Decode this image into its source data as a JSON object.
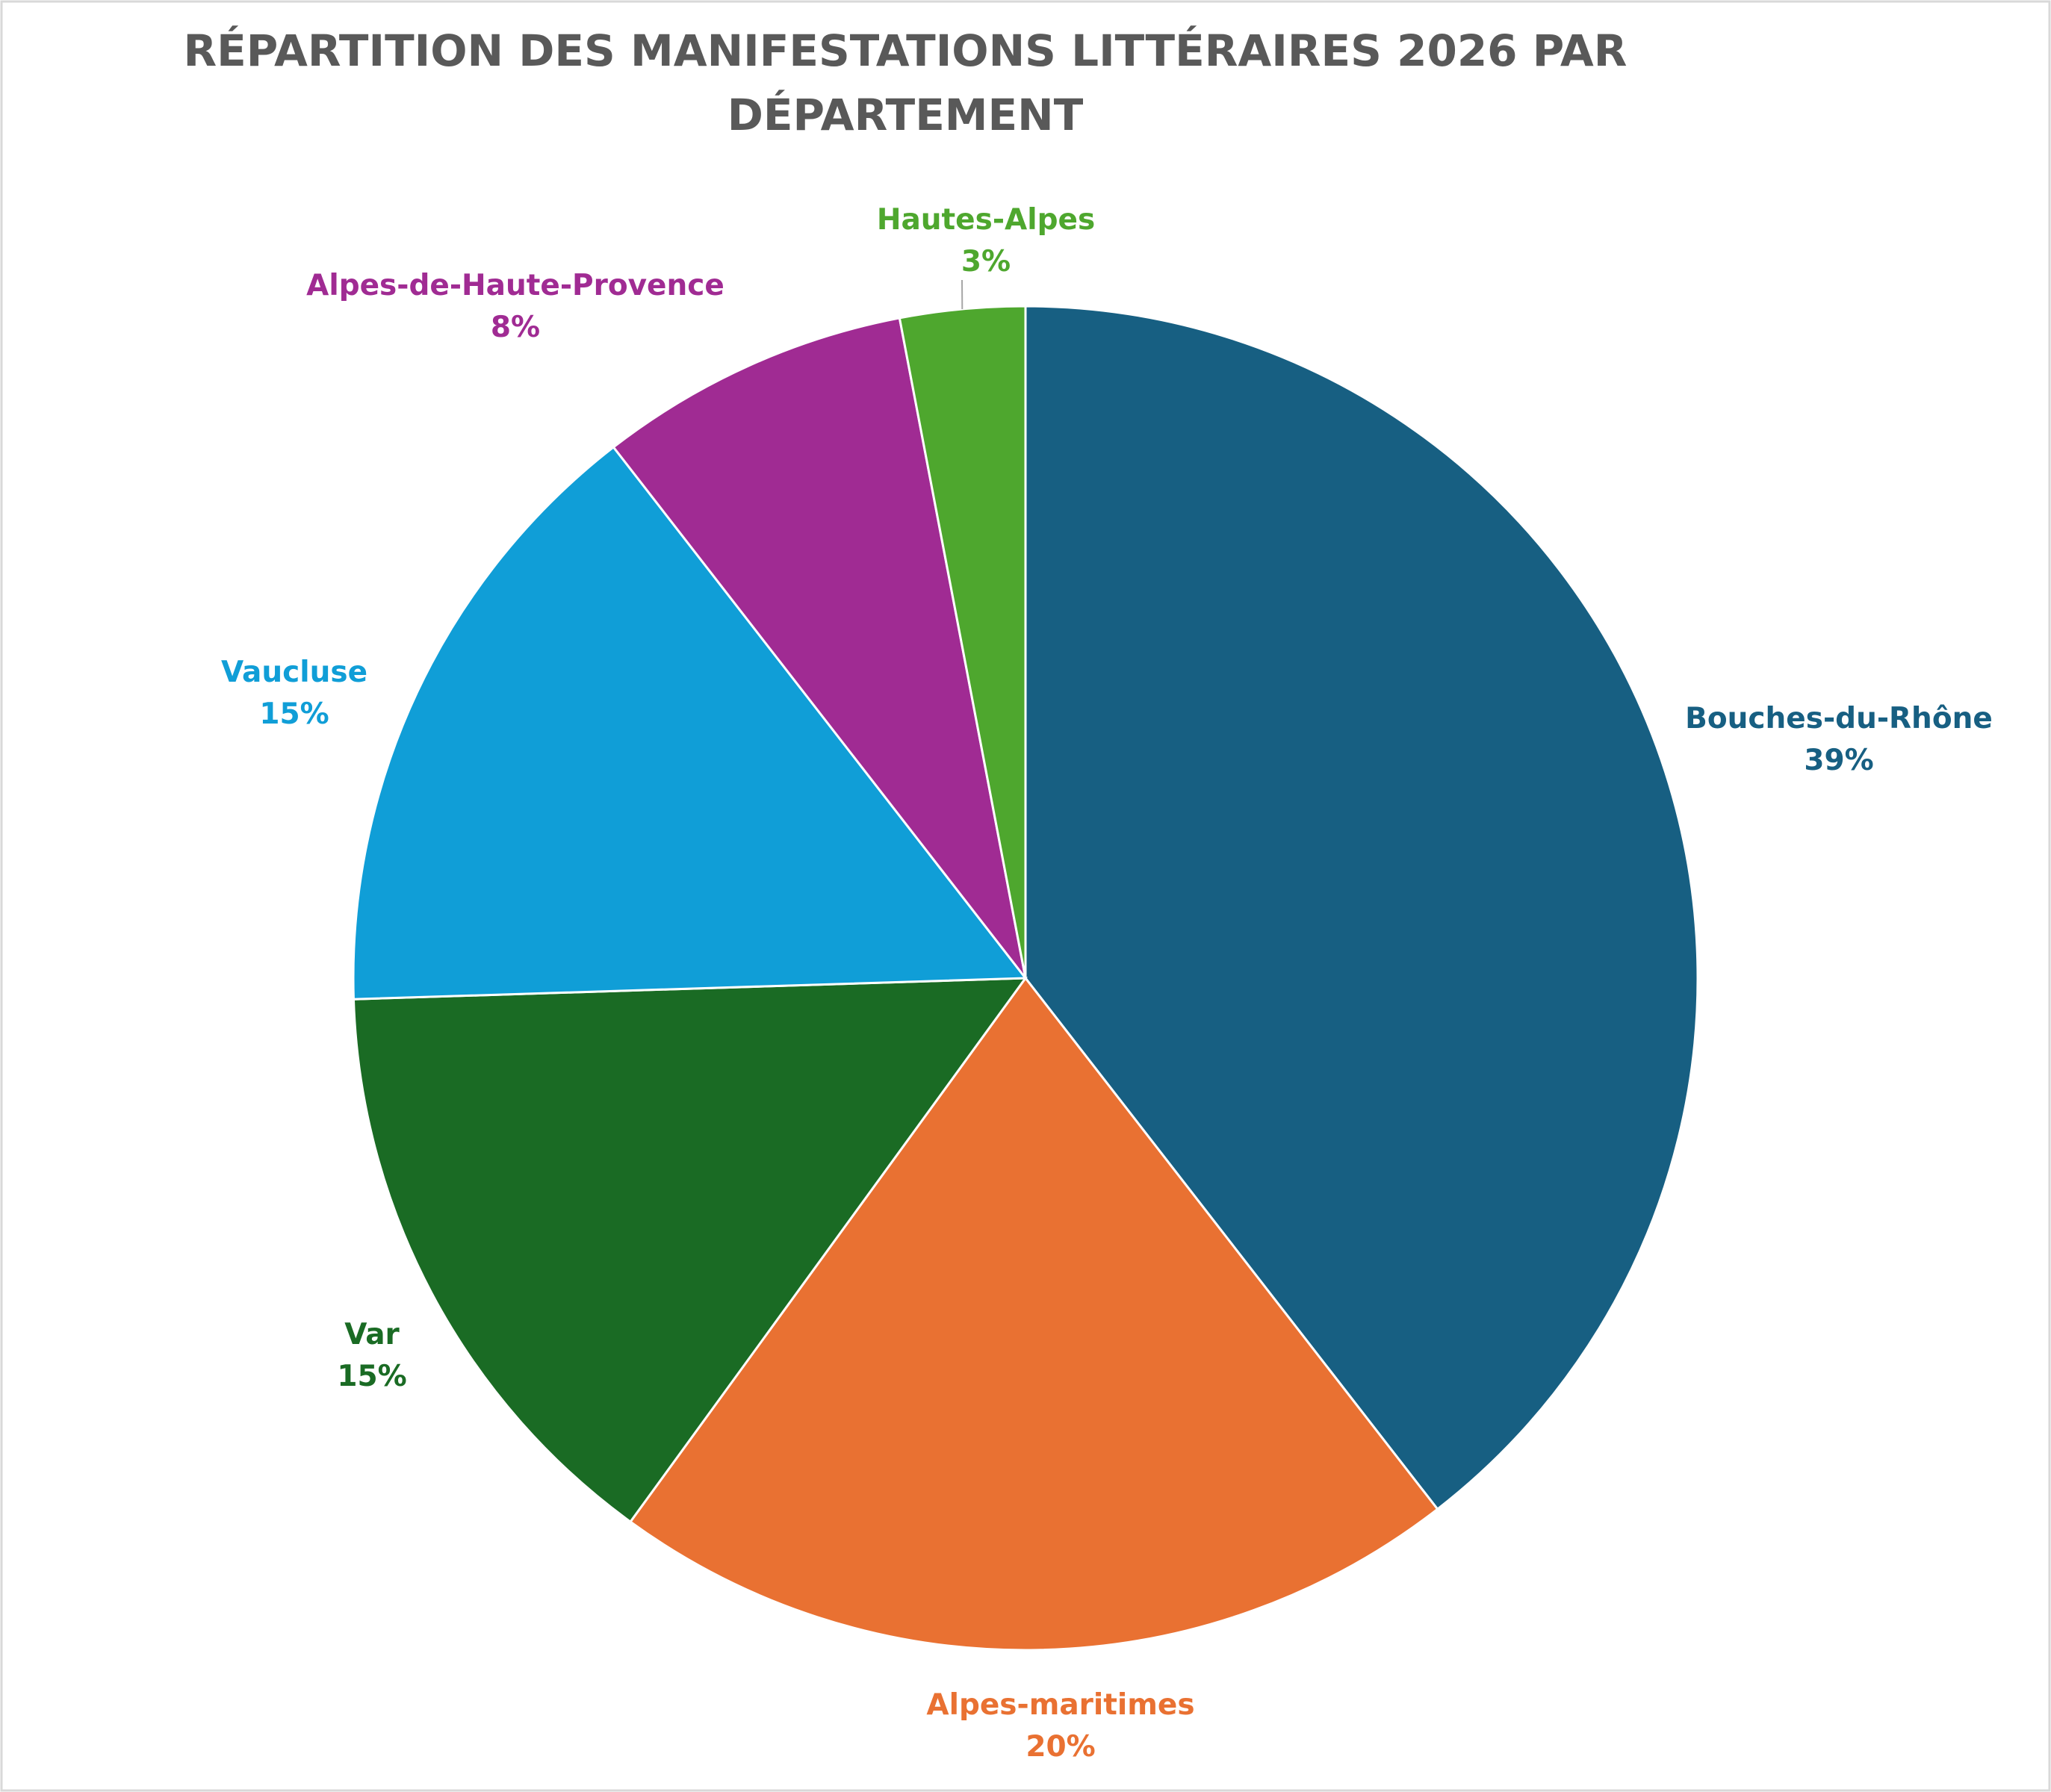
{
  "chart_data": {
    "type": "pie",
    "title": "RÉPARTITION DES MANIFESTATIONS LITTÉRAIRES 2026 PAR DÉPARTEMENT",
    "title_lines": [
      "RÉPARTITION DES MANIFESTATIONS LITTÉRAIRES 2026 PAR",
      "DÉPARTEMENT"
    ],
    "slices": [
      {
        "name": "Bouches-du-Rhône",
        "percent_label": "39%",
        "value": 39.5,
        "color": "#175F82"
      },
      {
        "name": "Alpes-maritimes",
        "percent_label": "20%",
        "value": 20.5,
        "color": "#E97132"
      },
      {
        "name": "Var",
        "percent_label": "15%",
        "value": 14.5,
        "color": "#1A6B24"
      },
      {
        "name": "Vaucluse",
        "percent_label": "15%",
        "value": 15,
        "color": "#109ED7"
      },
      {
        "name": "Alpes-de-Haute-Provence",
        "percent_label": "8%",
        "value": 7.5,
        "color": "#A02B93"
      },
      {
        "name": "Hautes-Alpes",
        "percent_label": "3%",
        "value": 3,
        "color": "#4EA72E"
      }
    ],
    "start_angle": "12 o'clock",
    "direction": "clockwise",
    "legend": "none",
    "data_labels": "outside"
  }
}
